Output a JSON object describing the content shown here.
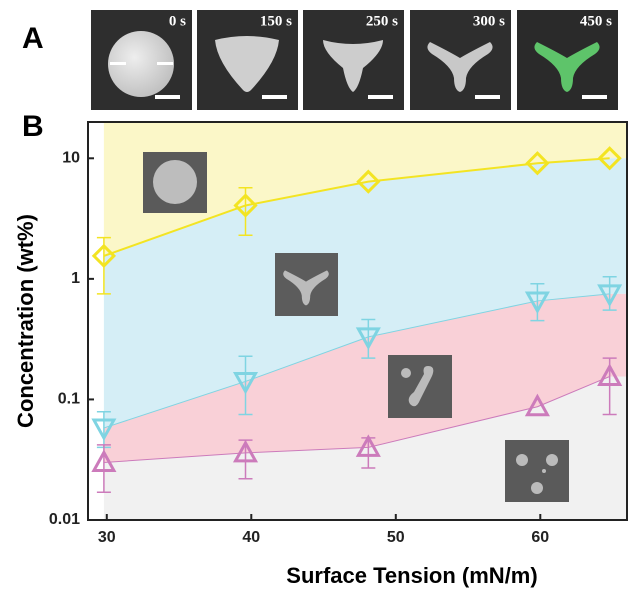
{
  "panel_a": {
    "label": "A",
    "frames": [
      "0 s",
      "150 s",
      "250 s",
      "300 s",
      "450 s"
    ]
  },
  "chart_data": {
    "type": "scatter",
    "panel_label": "B",
    "x_label": "Surface Tension (mN/m)",
    "y_label": "Concentration (wt%)",
    "x": [
      29.8,
      39.6,
      48.1,
      59.8,
      64.8
    ],
    "xlim": [
      28.7,
      66
    ],
    "xticks": [
      30,
      40,
      50,
      60
    ],
    "ylim": [
      0.01,
      20
    ],
    "yticks": [
      0.01,
      0.1,
      1,
      10
    ],
    "log_y": true,
    "floor_color": "#f1f1f1",
    "series": [
      {
        "color": "#f3e422",
        "area_color": "#fbf7c8",
        "marker": "diamond",
        "values": [
          1.55,
          4.06,
          6.4,
          9.1,
          10
        ],
        "err_lo": [
          0.75,
          2.3,
          null,
          null,
          null
        ],
        "err_hi": [
          2.2,
          5.7,
          null,
          null,
          null
        ]
      },
      {
        "color": "#7fd4e2",
        "area_color": "#d5eef6",
        "marker": "triangle-down",
        "values": [
          0.058,
          0.141,
          0.33,
          0.656,
          0.75
        ],
        "err_lo": [
          0.04,
          0.075,
          0.22,
          0.45,
          0.55
        ],
        "err_hi": [
          0.079,
          0.228,
          0.46,
          0.91,
          1.04
        ]
      },
      {
        "color": "#cc7bbb",
        "area_color": "#f9d0d7",
        "marker": "triangle-up",
        "values": [
          0.03,
          0.036,
          0.04,
          0.087,
          0.155
        ],
        "err_lo": [
          0.017,
          0.022,
          0.027,
          null,
          0.075
        ],
        "err_hi": [
          0.042,
          0.046,
          0.048,
          null,
          0.22
        ]
      }
    ]
  }
}
